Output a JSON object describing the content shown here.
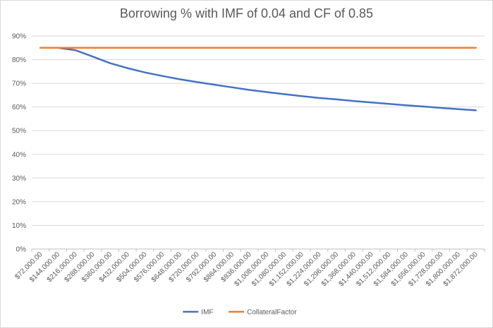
{
  "chart_data": {
    "type": "line",
    "title": "Borrowing % with IMF of 0.04 and CF of 0.85",
    "xlabel": "",
    "ylabel": "",
    "ylim": [
      0,
      90
    ],
    "y_tick_labels": [
      "0%",
      "10%",
      "20%",
      "30%",
      "40%",
      "50%",
      "60%",
      "70%",
      "80%",
      "90%"
    ],
    "categories": [
      "$72,000.00",
      "$144,000.00",
      "$216,000.00",
      "$288,000.00",
      "$360,000.00",
      "$432,000.00",
      "$504,000.00",
      "$576,000.00",
      "$648,000.00",
      "$720,000.00",
      "$792,000.00",
      "$864,000.00",
      "$936,000.00",
      "$1,008,000.00",
      "$1,080,000.00",
      "$1,152,000.00",
      "$1,224,000.00",
      "$1,296,000.00",
      "$1,368,000.00",
      "$1,440,000.00",
      "$1,512,000.00",
      "$1,584,000.00",
      "$1,656,000.00",
      "$1,728,000.00",
      "$1,800,000.00",
      "$1,872,000.00"
    ],
    "series": [
      {
        "name": "IMF",
        "color": "#4472c4",
        "values": [
          85,
          85,
          84,
          81.3,
          78.5,
          76.4,
          74.6,
          73.1,
          71.7,
          70.5,
          69.4,
          68.3,
          67.2,
          66.3,
          65.4,
          64.6,
          63.8,
          63.2,
          62.5,
          61.9,
          61.3,
          60.7,
          60.2,
          59.6,
          59.1,
          58.6
        ]
      },
      {
        "name": "CollateralFactor",
        "color": "#ed7d31",
        "values": [
          85,
          85,
          85,
          85,
          85,
          85,
          85,
          85,
          85,
          85,
          85,
          85,
          85,
          85,
          85,
          85,
          85,
          85,
          85,
          85,
          85,
          85,
          85,
          85,
          85,
          85
        ]
      }
    ],
    "grid": true,
    "legend_position": "bottom"
  }
}
